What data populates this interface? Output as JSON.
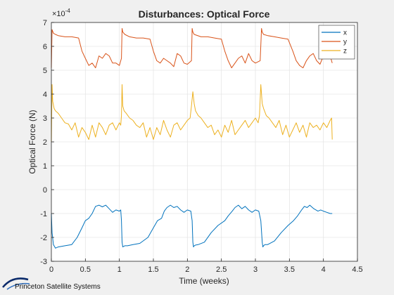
{
  "chart_data": {
    "type": "line",
    "title": "Disturbances: Optical Force",
    "xlabel": "Time (weeks)",
    "ylabel": "Optical Force (N)",
    "exponent_label": "×10",
    "exponent_power": "-4",
    "xlim": [
      0,
      4.5
    ],
    "ylim": [
      -3,
      7
    ],
    "xticks": [
      0,
      0.5,
      1,
      1.5,
      2,
      2.5,
      3,
      3.5,
      4,
      4.5
    ],
    "xtick_labels": [
      "0",
      "0.5",
      "1",
      "1.5",
      "2",
      "2.5",
      "3",
      "3.5",
      "4",
      "4.5"
    ],
    "yticks": [
      -3,
      -2,
      -1,
      0,
      1,
      2,
      3,
      4,
      5,
      6,
      7
    ],
    "ytick_labels": [
      "-3",
      "-2",
      "-1",
      "0",
      "1",
      "2",
      "3",
      "4",
      "5",
      "6",
      "7"
    ],
    "grid": true,
    "legend_position": "top-right",
    "series": [
      {
        "name": "x",
        "color": "#0072BD",
        "x": [
          0,
          0.01,
          0.03,
          0.06,
          0.1,
          0.2,
          0.3,
          0.38,
          0.45,
          0.5,
          0.55,
          0.6,
          0.65,
          0.7,
          0.75,
          0.8,
          0.85,
          0.9,
          0.95,
          1.0,
          1.02,
          1.03,
          1.04,
          1.05,
          1.06,
          1.08,
          1.12,
          1.2,
          1.3,
          1.42,
          1.5,
          1.56,
          1.62,
          1.66,
          1.7,
          1.75,
          1.8,
          1.85,
          1.9,
          1.95,
          2.0,
          2.05,
          2.07,
          2.08,
          2.09,
          2.1,
          2.12,
          2.16,
          2.25,
          2.35,
          2.45,
          2.55,
          2.6,
          2.66,
          2.7,
          2.75,
          2.8,
          2.85,
          2.9,
          2.95,
          3.0,
          3.05,
          3.08,
          3.1,
          3.11,
          3.12,
          3.14,
          3.18,
          3.28,
          3.38,
          3.48,
          3.56,
          3.62,
          3.68,
          3.72,
          3.76,
          3.8,
          3.86,
          3.92,
          3.96,
          4.0,
          4.05,
          4.1,
          4.13
        ],
        "y": [
          -1.0,
          -1.8,
          -2.3,
          -2.45,
          -2.4,
          -2.35,
          -2.3,
          -2.0,
          -1.6,
          -1.3,
          -1.2,
          -1.0,
          -0.7,
          -0.65,
          -0.72,
          -0.65,
          -0.8,
          -0.95,
          -0.85,
          -0.9,
          -0.85,
          -1.3,
          -2.2,
          -2.4,
          -2.38,
          -2.35,
          -2.35,
          -2.3,
          -2.25,
          -2.0,
          -1.6,
          -1.3,
          -1.2,
          -0.9,
          -0.75,
          -0.65,
          -0.75,
          -0.7,
          -0.85,
          -0.95,
          -0.85,
          -0.9,
          -1.3,
          -2.2,
          -2.4,
          -2.35,
          -2.32,
          -2.3,
          -2.2,
          -1.8,
          -1.5,
          -1.3,
          -1.1,
          -0.9,
          -0.75,
          -0.65,
          -0.8,
          -0.7,
          -0.85,
          -0.95,
          -0.85,
          -0.9,
          -1.3,
          -2.2,
          -2.4,
          -2.35,
          -2.3,
          -2.3,
          -2.15,
          -1.8,
          -1.5,
          -1.3,
          -1.1,
          -0.85,
          -0.7,
          -0.75,
          -0.65,
          -0.8,
          -0.9,
          -0.85,
          -0.9,
          -0.95,
          -1.0,
          -1.0
        ]
      },
      {
        "name": "y",
        "color": "#D95319",
        "x": [
          0,
          0.01,
          0.03,
          0.06,
          0.1,
          0.2,
          0.3,
          0.4,
          0.45,
          0.5,
          0.55,
          0.6,
          0.65,
          0.7,
          0.75,
          0.8,
          0.85,
          0.9,
          0.95,
          1.0,
          1.03,
          1.04,
          1.05,
          1.08,
          1.15,
          1.25,
          1.35,
          1.45,
          1.5,
          1.55,
          1.6,
          1.65,
          1.7,
          1.75,
          1.8,
          1.85,
          1.9,
          1.95,
          2.0,
          2.06,
          2.07,
          2.08,
          2.1,
          2.2,
          2.3,
          2.4,
          2.5,
          2.55,
          2.6,
          2.65,
          2.7,
          2.75,
          2.8,
          2.85,
          2.9,
          2.95,
          3.0,
          3.07,
          3.09,
          3.1,
          3.12,
          3.18,
          3.28,
          3.38,
          3.48,
          3.55,
          3.6,
          3.65,
          3.7,
          3.75,
          3.8,
          3.85,
          3.9,
          3.95,
          4.0,
          4.05,
          4.1,
          4.13
        ],
        "y": [
          5.1,
          6.7,
          6.55,
          6.5,
          6.45,
          6.4,
          6.4,
          6.35,
          5.8,
          5.5,
          5.2,
          5.3,
          5.1,
          5.6,
          5.5,
          5.7,
          5.6,
          5.3,
          5.3,
          5.2,
          5.5,
          6.75,
          6.6,
          6.5,
          6.4,
          6.35,
          6.35,
          6.3,
          5.8,
          5.4,
          5.3,
          5.5,
          5.4,
          5.3,
          5.15,
          5.7,
          5.6,
          5.3,
          5.25,
          5.4,
          6.75,
          6.6,
          6.5,
          6.4,
          6.4,
          6.35,
          6.3,
          5.8,
          5.4,
          5.1,
          5.3,
          5.5,
          5.6,
          5.3,
          5.7,
          5.4,
          5.3,
          5.4,
          6.75,
          6.6,
          6.5,
          6.45,
          6.4,
          6.35,
          6.3,
          5.8,
          5.4,
          5.2,
          5.1,
          5.4,
          5.6,
          5.7,
          5.4,
          5.25,
          5.6,
          5.7,
          5.6,
          5.3
        ]
      },
      {
        "name": "z",
        "color": "#EDB120",
        "x": [
          0,
          0.01,
          0.02,
          0.04,
          0.06,
          0.1,
          0.15,
          0.2,
          0.25,
          0.3,
          0.35,
          0.4,
          0.45,
          0.5,
          0.55,
          0.6,
          0.65,
          0.7,
          0.75,
          0.8,
          0.85,
          0.9,
          0.95,
          1.0,
          1.02,
          1.03,
          1.04,
          1.05,
          1.07,
          1.1,
          1.15,
          1.2,
          1.25,
          1.3,
          1.35,
          1.4,
          1.45,
          1.5,
          1.55,
          1.6,
          1.65,
          1.7,
          1.75,
          1.8,
          1.85,
          1.9,
          1.95,
          2.0,
          2.04,
          2.06,
          2.08,
          2.1,
          2.12,
          2.16,
          2.2,
          2.25,
          2.3,
          2.35,
          2.4,
          2.45,
          2.5,
          2.55,
          2.6,
          2.65,
          2.7,
          2.75,
          2.8,
          2.85,
          2.9,
          2.95,
          3.0,
          3.04,
          3.06,
          3.08,
          3.1,
          3.12,
          3.16,
          3.2,
          3.25,
          3.3,
          3.35,
          3.4,
          3.45,
          3.5,
          3.55,
          3.6,
          3.65,
          3.7,
          3.75,
          3.8,
          3.85,
          3.9,
          3.95,
          4.0,
          4.05,
          4.1,
          4.12,
          4.13
        ],
        "y": [
          2.0,
          4.4,
          3.7,
          3.4,
          3.3,
          3.2,
          3.0,
          2.8,
          2.75,
          2.5,
          2.8,
          2.2,
          2.6,
          2.4,
          2.1,
          2.7,
          2.2,
          2.8,
          2.6,
          2.3,
          2.7,
          2.8,
          2.5,
          2.8,
          2.7,
          3.1,
          4.4,
          3.5,
          3.3,
          3.2,
          3.0,
          2.9,
          2.7,
          2.6,
          2.8,
          2.2,
          2.6,
          2.1,
          2.6,
          2.3,
          2.9,
          2.5,
          2.2,
          2.7,
          2.8,
          2.5,
          2.7,
          2.9,
          3.0,
          3.5,
          4.1,
          3.6,
          3.3,
          3.1,
          3.0,
          2.8,
          2.6,
          2.7,
          2.3,
          2.5,
          2.2,
          2.7,
          2.4,
          2.9,
          2.3,
          2.5,
          2.7,
          2.9,
          2.6,
          2.8,
          3.0,
          2.8,
          3.1,
          4.4,
          3.6,
          3.4,
          3.1,
          3.0,
          2.8,
          2.6,
          2.9,
          2.3,
          2.7,
          2.2,
          2.5,
          2.8,
          2.4,
          2.7,
          2.2,
          2.8,
          2.6,
          2.7,
          2.5,
          2.8,
          2.6,
          2.9,
          3.0,
          2.1
        ]
      }
    ]
  },
  "footer": {
    "brand": "Princeton Satellite Systems",
    "accent": "#0b2b6b"
  }
}
